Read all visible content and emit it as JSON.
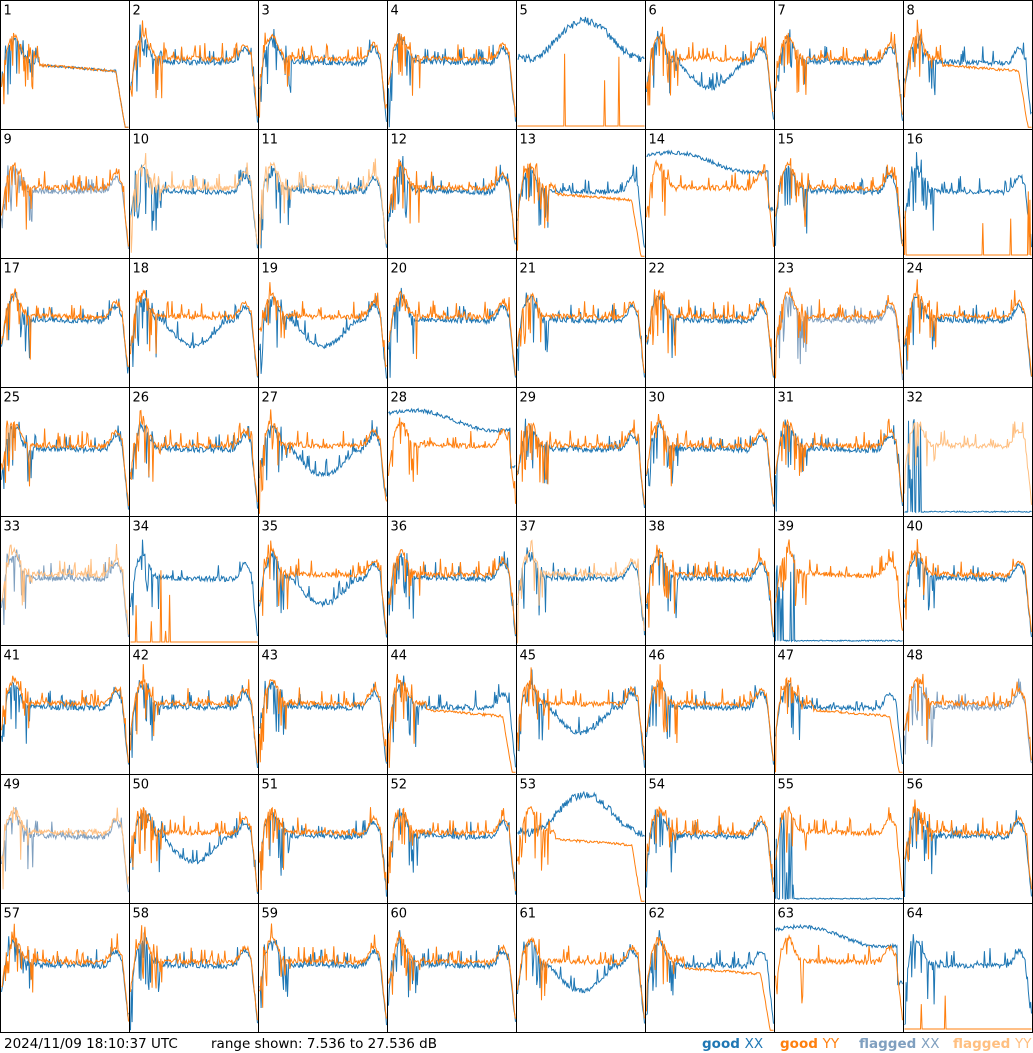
{
  "chart_data": {
    "type": "line",
    "grid": {
      "rows": 8,
      "cols": 8
    },
    "timestamp": "2024/11/09 18:10:37 UTC",
    "range_text": "range shown: 7.536 to 27.536 dB",
    "ylim": [
      7.536,
      27.536
    ],
    "legend": {
      "placement": "bottom-right",
      "items": [
        {
          "key": "good_xx",
          "prefix": "good ",
          "suffix": "XX",
          "color": "#1f77b4"
        },
        {
          "key": "good_yy",
          "prefix": "good ",
          "suffix": "YY",
          "color": "#ff7f0e"
        },
        {
          "key": "flagged_xx",
          "prefix": "flagged ",
          "suffix": "XX",
          "color": "#7f9fbf"
        },
        {
          "key": "flagged_yy",
          "prefix": "flagged ",
          "suffix": "YY",
          "color": "#ffbf80"
        }
      ]
    },
    "panels": [
      {
        "id": "1",
        "x": "n",
        "y": "n"
      },
      {
        "id": "2",
        "x": "g",
        "y": "g"
      },
      {
        "id": "3",
        "x": "g",
        "y": "g"
      },
      {
        "id": "4",
        "x": "g",
        "y": "g"
      },
      {
        "id": "5",
        "x": "w",
        "y": "s"
      },
      {
        "id": "6",
        "x": "d",
        "y": "g"
      },
      {
        "id": "7",
        "x": "g",
        "y": "g"
      },
      {
        "id": "8",
        "x": "g",
        "y": "n"
      },
      {
        "id": "9",
        "x": "f",
        "y": "g"
      },
      {
        "id": "10",
        "x": "g",
        "y": "f"
      },
      {
        "id": "11",
        "x": "g",
        "y": "f"
      },
      {
        "id": "12",
        "x": "g",
        "y": "g"
      },
      {
        "id": "13",
        "x": "g",
        "y": "n"
      },
      {
        "id": "14",
        "x": "h",
        "y": "g"
      },
      {
        "id": "15",
        "x": "g",
        "y": "g"
      },
      {
        "id": "16",
        "x": "g",
        "y": "s"
      },
      {
        "id": "17",
        "x": "g",
        "y": "g"
      },
      {
        "id": "18",
        "x": "d",
        "y": "g"
      },
      {
        "id": "19",
        "x": "d",
        "y": "g"
      },
      {
        "id": "20",
        "x": "g",
        "y": "g"
      },
      {
        "id": "21",
        "x": "g",
        "y": "g"
      },
      {
        "id": "22",
        "x": "g",
        "y": "g"
      },
      {
        "id": "23",
        "x": "f",
        "y": "g"
      },
      {
        "id": "24",
        "x": "g",
        "y": "g"
      },
      {
        "id": "25",
        "x": "g",
        "y": "g"
      },
      {
        "id": "26",
        "x": "g",
        "y": "g"
      },
      {
        "id": "27",
        "x": "d",
        "y": "g"
      },
      {
        "id": "28",
        "x": "h",
        "y": "g"
      },
      {
        "id": "29",
        "x": "g",
        "y": "g"
      },
      {
        "id": "30",
        "x": "g",
        "y": "g"
      },
      {
        "id": "31",
        "x": "g",
        "y": "g"
      },
      {
        "id": "32",
        "x": "z",
        "y": "f"
      },
      {
        "id": "33",
        "x": "f",
        "y": "f"
      },
      {
        "id": "34",
        "x": "g",
        "y": "s"
      },
      {
        "id": "35",
        "x": "d",
        "y": "g"
      },
      {
        "id": "36",
        "x": "g",
        "y": "g"
      },
      {
        "id": "37",
        "x": "g",
        "y": "f"
      },
      {
        "id": "38",
        "x": "g",
        "y": "g"
      },
      {
        "id": "39",
        "x": "z",
        "y": "g"
      },
      {
        "id": "40",
        "x": "g",
        "y": "g"
      },
      {
        "id": "41",
        "x": "g",
        "y": "g"
      },
      {
        "id": "42",
        "x": "g",
        "y": "g"
      },
      {
        "id": "43",
        "x": "g",
        "y": "g"
      },
      {
        "id": "44",
        "x": "g",
        "y": "n"
      },
      {
        "id": "45",
        "x": "d",
        "y": "g"
      },
      {
        "id": "46",
        "x": "g",
        "y": "g"
      },
      {
        "id": "47",
        "x": "g",
        "y": "n"
      },
      {
        "id": "48",
        "x": "f",
        "y": "g"
      },
      {
        "id": "49",
        "x": "f",
        "y": "f"
      },
      {
        "id": "50",
        "x": "d",
        "y": "g"
      },
      {
        "id": "51",
        "x": "g",
        "y": "g"
      },
      {
        "id": "52",
        "x": "g",
        "y": "g"
      },
      {
        "id": "53",
        "x": "w",
        "y": "n"
      },
      {
        "id": "54",
        "x": "g",
        "y": "g"
      },
      {
        "id": "55",
        "x": "z",
        "y": "g"
      },
      {
        "id": "56",
        "x": "g",
        "y": "g"
      },
      {
        "id": "57",
        "x": "g",
        "y": "g"
      },
      {
        "id": "58",
        "x": "g",
        "y": "g"
      },
      {
        "id": "59",
        "x": "g",
        "y": "g"
      },
      {
        "id": "60",
        "x": "g",
        "y": "g"
      },
      {
        "id": "61",
        "x": "d",
        "y": "g"
      },
      {
        "id": "62",
        "x": "g",
        "y": "n"
      },
      {
        "id": "63",
        "x": "h",
        "y": "g"
      },
      {
        "id": "64",
        "x": "g",
        "y": "s"
      }
    ]
  }
}
